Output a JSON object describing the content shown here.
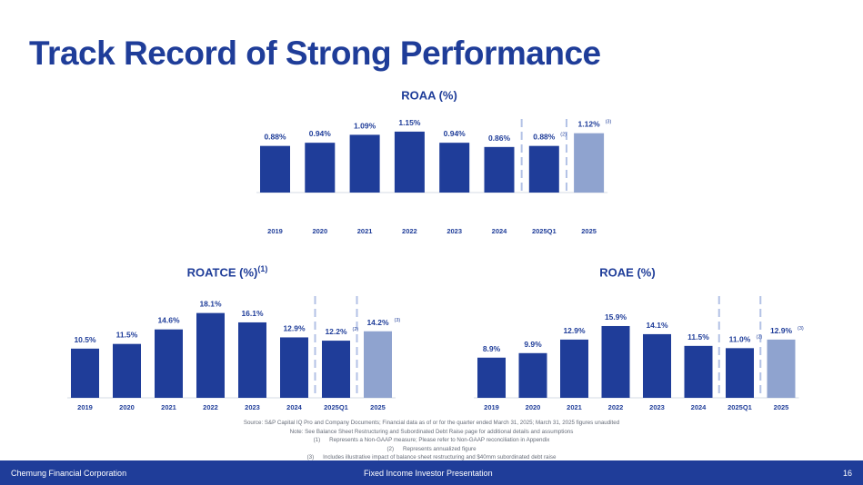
{
  "title": "Track Record of Strong Performance",
  "chart_data": [
    {
      "type": "bar",
      "title": "ROAA (%)",
      "title_superscript": "",
      "categories": [
        "2019",
        "2020",
        "2021",
        "2022",
        "2023",
        "2024",
        "2025Q1",
        "2025"
      ],
      "values": [
        0.88,
        0.94,
        1.09,
        1.15,
        0.94,
        0.86,
        0.88,
        1.12
      ],
      "labels": [
        "0.88%",
        "0.94%",
        "1.09%",
        "1.15%",
        "0.94%",
        "0.86%",
        "0.88%",
        "1.12%"
      ],
      "label_notes": [
        "",
        "",
        "",
        "",
        "",
        "",
        "(2)",
        "(3)"
      ],
      "highlight_index": 7,
      "colors": {
        "bar": "#1f3d99",
        "highlight": "#8fa3cf",
        "divider": "#b3c2e6"
      },
      "ylim": [
        0,
        1.2
      ]
    },
    {
      "type": "bar",
      "title": "ROATCE (%)",
      "title_superscript": "(1)",
      "categories": [
        "2019",
        "2020",
        "2021",
        "2022",
        "2023",
        "2024",
        "2025Q1",
        "2025"
      ],
      "values": [
        10.5,
        11.5,
        14.6,
        18.1,
        16.1,
        12.9,
        12.2,
        14.2
      ],
      "labels": [
        "10.5%",
        "11.5%",
        "14.6%",
        "18.1%",
        "16.1%",
        "12.9%",
        "12.2%",
        "14.2%"
      ],
      "label_notes": [
        "",
        "",
        "",
        "",
        "",
        "",
        "(2)",
        "(3)"
      ],
      "highlight_index": 7,
      "colors": {
        "bar": "#1f3d99",
        "highlight": "#8fa3cf",
        "divider": "#b3c2e6"
      },
      "ylim": [
        0,
        19
      ]
    },
    {
      "type": "bar",
      "title": "ROAE (%)",
      "title_superscript": "",
      "categories": [
        "2019",
        "2020",
        "2021",
        "2022",
        "2023",
        "2024",
        "2025Q1",
        "2025"
      ],
      "values": [
        8.9,
        9.9,
        12.9,
        15.9,
        14.1,
        11.5,
        11.0,
        12.9
      ],
      "labels": [
        "8.9%",
        "9.9%",
        "12.9%",
        "15.9%",
        "14.1%",
        "11.5%",
        "11.0%",
        "12.9%"
      ],
      "label_notes": [
        "",
        "",
        "",
        "",
        "",
        "",
        "(2)",
        "(3)"
      ],
      "highlight_index": 7,
      "colors": {
        "bar": "#1f3d99",
        "highlight": "#8fa3cf",
        "divider": "#b3c2e6"
      },
      "ylim": [
        0,
        16.5
      ]
    }
  ],
  "notes": {
    "source": "Source: S&P Capital IQ Pro and Company Documents; Financial data as of or for the quarter ended March 31, 2025; March 31, 2025 figures unaudited",
    "note": "Note: See Balance Sheet Restructuring and Subordinated Debt Raise page for additional details and assumptions",
    "footnotes": [
      {
        "num": "(1)",
        "text": "Represents a Non-GAAP measure; Please refer to Non-GAAP reconciliation in Appendix"
      },
      {
        "num": "(2)",
        "text": "Represents annualized figure"
      },
      {
        "num": "(3)",
        "text": "Includes illustrative impact of balance sheet restructuring and $40mm subordinated debt raise"
      }
    ]
  },
  "footer": {
    "company": "Chemung Financial Corporation",
    "presentation": "Fixed Income Investor Presentation",
    "page": "16"
  }
}
